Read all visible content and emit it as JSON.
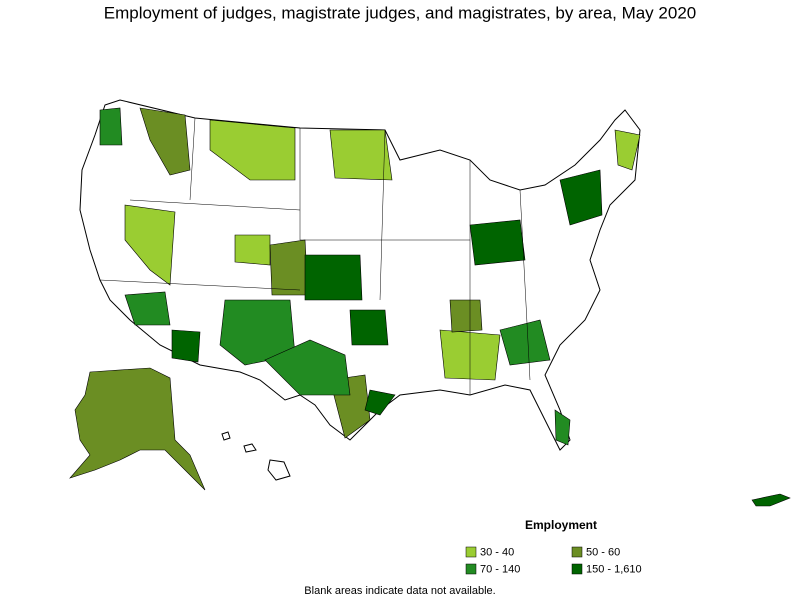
{
  "title": "Employment of judges, magistrate judges, and magistrates, by area, May 2020",
  "legend": {
    "title": "Employment",
    "items": [
      {
        "label": "30 - 40",
        "color": "#9acd32"
      },
      {
        "label": "50 - 60",
        "color": "#6b8e23"
      },
      {
        "label": "70 - 140",
        "color": "#228b22"
      },
      {
        "label": "150 - 1,610",
        "color": "#006400"
      }
    ]
  },
  "note": "Blank areas indicate data not available."
}
